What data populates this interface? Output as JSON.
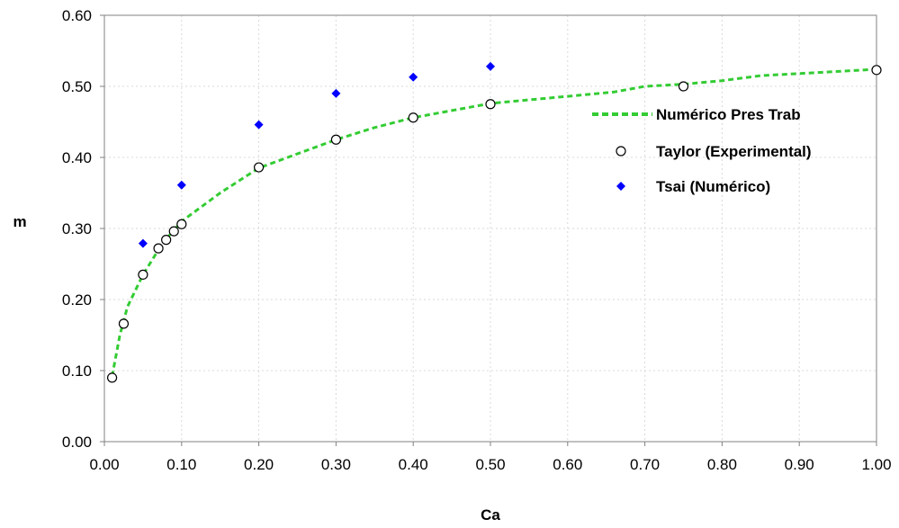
{
  "chart_data": {
    "type": "scatter",
    "xlabel": "Ca",
    "ylabel": "m",
    "xlim": [
      0,
      1
    ],
    "ylim": [
      0,
      0.6
    ],
    "x_ticks": [
      "0.00",
      "0.10",
      "0.20",
      "0.30",
      "0.40",
      "0.50",
      "0.60",
      "0.70",
      "0.80",
      "0.90",
      "1.00"
    ],
    "y_ticks": [
      "0.00",
      "0.10",
      "0.20",
      "0.30",
      "0.40",
      "0.50",
      "0.60"
    ],
    "x_tick_values": [
      0,
      0.1,
      0.2,
      0.3,
      0.4,
      0.5,
      0.6,
      0.7,
      0.8,
      0.9,
      1.0
    ],
    "y_tick_values": [
      0,
      0.1,
      0.2,
      0.3,
      0.4,
      0.5,
      0.6
    ],
    "grid": true,
    "legend_position": "right",
    "series": [
      {
        "name": "Numérico Pres Trab",
        "style": "dashed-line",
        "color": "#33cc33",
        "points": [
          [
            0.01,
            0.092
          ],
          [
            0.02,
            0.15
          ],
          [
            0.03,
            0.19
          ],
          [
            0.05,
            0.235
          ],
          [
            0.07,
            0.27
          ],
          [
            0.08,
            0.285
          ],
          [
            0.1,
            0.31
          ],
          [
            0.15,
            0.35
          ],
          [
            0.2,
            0.385
          ],
          [
            0.25,
            0.405
          ],
          [
            0.3,
            0.425
          ],
          [
            0.35,
            0.442
          ],
          [
            0.4,
            0.456
          ],
          [
            0.45,
            0.466
          ],
          [
            0.5,
            0.476
          ],
          [
            0.55,
            0.481
          ],
          [
            0.6,
            0.486
          ],
          [
            0.66,
            0.492
          ],
          [
            0.7,
            0.5
          ],
          [
            0.75,
            0.503
          ],
          [
            0.8,
            0.508
          ],
          [
            0.85,
            0.515
          ],
          [
            0.9,
            0.518
          ],
          [
            0.95,
            0.521
          ],
          [
            1.0,
            0.524
          ]
        ]
      },
      {
        "name": "Taylor (Experimental)",
        "style": "open-circle",
        "color": "#000000",
        "points": [
          [
            0.01,
            0.09
          ],
          [
            0.025,
            0.166
          ],
          [
            0.05,
            0.235
          ],
          [
            0.07,
            0.272
          ],
          [
            0.08,
            0.284
          ],
          [
            0.09,
            0.296
          ],
          [
            0.1,
            0.306
          ],
          [
            0.2,
            0.386
          ],
          [
            0.3,
            0.425
          ],
          [
            0.4,
            0.456
          ],
          [
            0.5,
            0.475
          ],
          [
            0.75,
            0.5
          ],
          [
            1.0,
            0.523
          ]
        ]
      },
      {
        "name": "Tsai (Numérico)",
        "style": "diamond",
        "color": "#0000ff",
        "points": [
          [
            0.05,
            0.279
          ],
          [
            0.1,
            0.361
          ],
          [
            0.2,
            0.446
          ],
          [
            0.3,
            0.49
          ],
          [
            0.4,
            0.513
          ],
          [
            0.5,
            0.528
          ]
        ]
      }
    ]
  }
}
